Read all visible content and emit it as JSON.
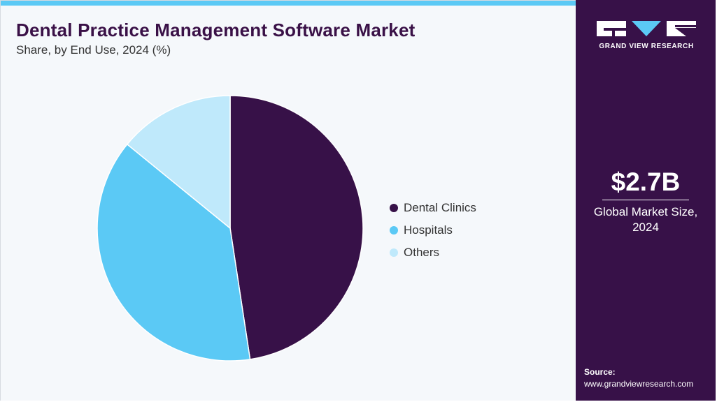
{
  "colors": {
    "accent": "#5bc9f5",
    "panel": "#371148",
    "background": "#f5f8fb"
  },
  "header": {
    "title": "Dental Practice Management Software Market",
    "subtitle": "Share, by End Use, 2024 (%)"
  },
  "chart_data": {
    "type": "pie",
    "title": "Dental Practice Management Software Market",
    "subtitle": "Share, by End Use, 2024 (%)",
    "legend_position": "right",
    "slices": [
      {
        "label": "Dental Clinics",
        "value": 47.6,
        "color": "#371148"
      },
      {
        "label": "Hospitals",
        "value": 38.3,
        "color": "#5bc9f5"
      },
      {
        "label": "Others",
        "value": 14.1,
        "color": "#bfe9fb"
      }
    ]
  },
  "sidebar": {
    "logo_text": "GRAND VIEW RESEARCH",
    "market_value": "$2.7B",
    "market_label": "Global Market Size, 2024",
    "source_label": "Source:",
    "source_url": "www.grandviewresearch.com"
  }
}
